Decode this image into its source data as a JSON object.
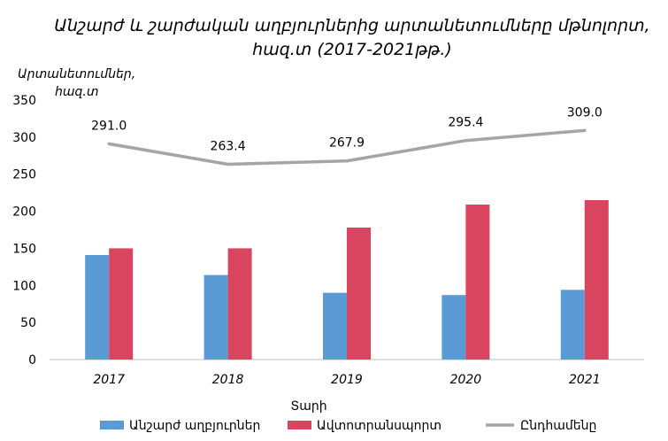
{
  "chart_data": {
    "type": "bar",
    "title_line1": "Անշարժ և շարժական աղբյուրներից արտանետումները մթնոլորտ,",
    "title_line2": "հազ.տ (2017-2021թթ.)",
    "ylabel_line1": "Արտանետումներ,",
    "ylabel_line2": "հազ.տ",
    "xlabel": "Տարի",
    "categories": [
      "2017",
      "2018",
      "2019",
      "2020",
      "2021"
    ],
    "ylim": [
      0,
      350
    ],
    "yticks": [
      0,
      50,
      100,
      150,
      200,
      250,
      300,
      350
    ],
    "series": [
      {
        "name": "Անշարժ աղբյուրներ",
        "type": "bar",
        "color": "#5B9BD5",
        "values": [
          141,
          114,
          90,
          87,
          94
        ]
      },
      {
        "name": "Ավտոտրանսպորտ",
        "type": "bar",
        "color": "#D9445E",
        "values": [
          150,
          150,
          178,
          209,
          215
        ]
      },
      {
        "name": "Ընդհամենը",
        "type": "line",
        "color": "#A5A5A5",
        "values": [
          291.0,
          263.4,
          267.9,
          295.4,
          309.0
        ],
        "labels": [
          "291.0",
          "263.4",
          "267.9",
          "295.4",
          "309.0"
        ]
      }
    ],
    "grid": false,
    "legend": "bottom"
  }
}
